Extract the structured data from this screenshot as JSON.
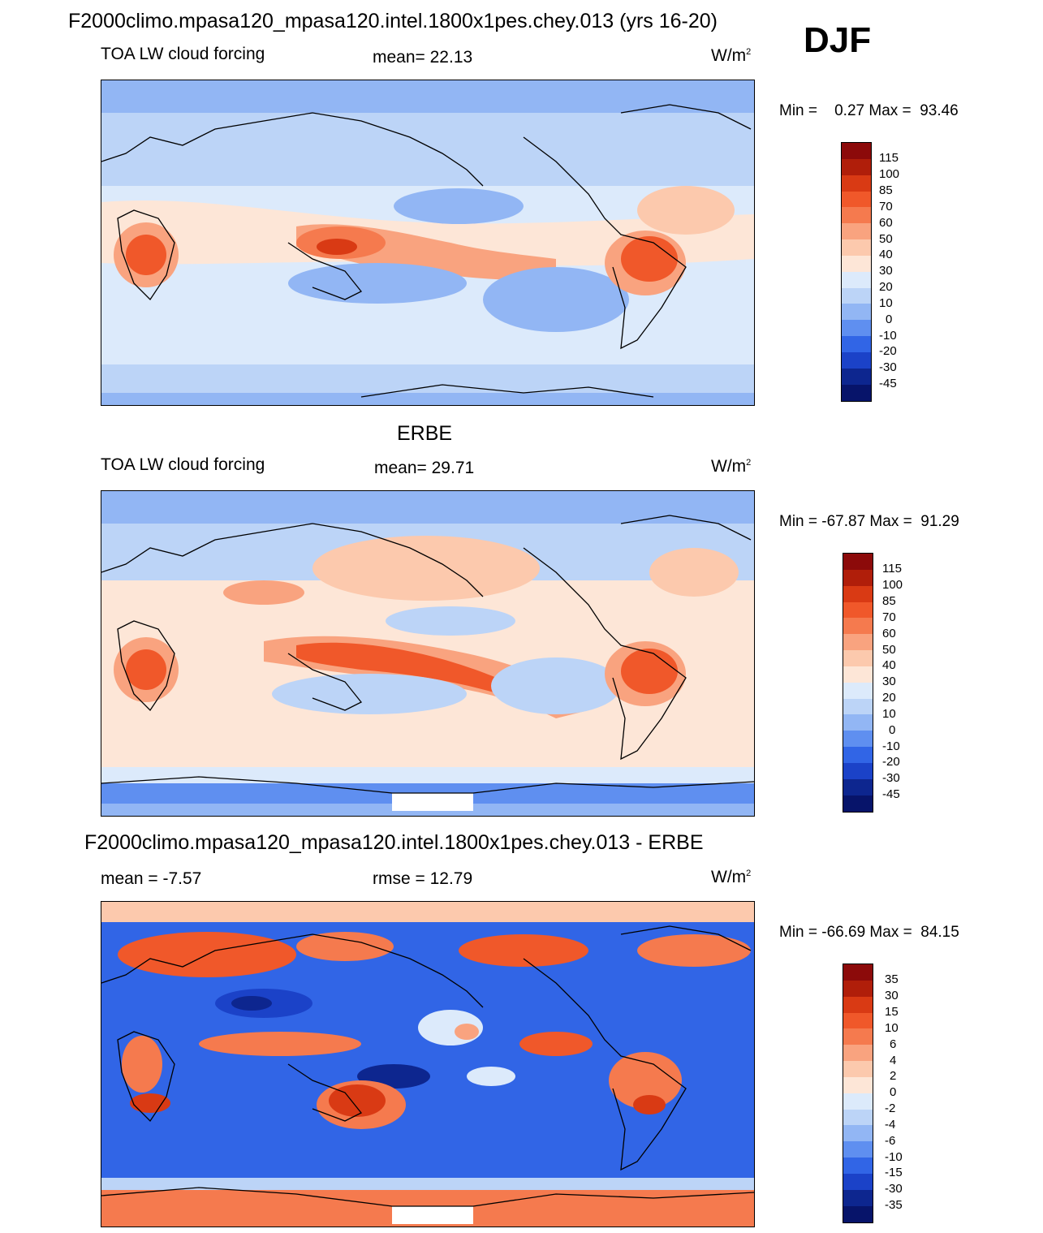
{
  "main_title": "F2000climo.mpasa120_mpasa120.intel.1800x1pes.chey.013 (yrs 16-20)",
  "season": "DJF",
  "panels": [
    {
      "subtitle": "",
      "left_label": "TOA LW cloud forcing",
      "center_label": "mean=  22.13",
      "units": "W/m",
      "units_sup": "2",
      "minmax": "Min =    0.27 Max =  93.46",
      "colorbar_labels": [
        "115",
        "100",
        "85",
        "70",
        "60",
        "50",
        "40",
        "30",
        "20",
        "10",
        "0",
        "-10",
        "-20",
        "-30",
        "-45"
      ]
    },
    {
      "subtitle": "ERBE",
      "left_label": "TOA LW cloud forcing",
      "center_label": "mean=  29.71",
      "units": "W/m",
      "units_sup": "2",
      "minmax": "Min = -67.87 Max =  91.29",
      "colorbar_labels": [
        "115",
        "100",
        "85",
        "70",
        "60",
        "50",
        "40",
        "30",
        "20",
        "10",
        "0",
        "-10",
        "-20",
        "-30",
        "-45"
      ]
    },
    {
      "subtitle": "F2000climo.mpasa120_mpasa120.intel.1800x1pes.chey.013 - ERBE",
      "left_label": "mean =  -7.57",
      "center_label": "rmse =  12.79",
      "units": "W/m",
      "units_sup": "2",
      "minmax": "Min = -66.69 Max =  84.15",
      "colorbar_labels": [
        "35",
        "30",
        "15",
        "10",
        "6",
        "4",
        "2",
        "0",
        "-2",
        "-4",
        "-6",
        "-10",
        "-15",
        "-30",
        "-35"
      ]
    }
  ],
  "colors": {
    "abs_scale": [
      "#8c0a0a",
      "#b01e0a",
      "#d93a14",
      "#f0582a",
      "#f57a4e",
      "#f9a37f",
      "#fcc9ad",
      "#fde6d7",
      "#dceafb",
      "#bcd4f7",
      "#92b6f4",
      "#5f8ff0",
      "#3165e6",
      "#1b42c8",
      "#0d268f",
      "#07146a"
    ],
    "diff_scale": [
      "#8c0a0a",
      "#b01e0a",
      "#d93a14",
      "#f0582a",
      "#f57a4e",
      "#f9a37f",
      "#fcc9ad",
      "#fde6d7",
      "#dceafb",
      "#bcd4f7",
      "#92b6f4",
      "#5f8ff0",
      "#3165e6",
      "#1b42c8",
      "#0d268f",
      "#07146a"
    ]
  }
}
